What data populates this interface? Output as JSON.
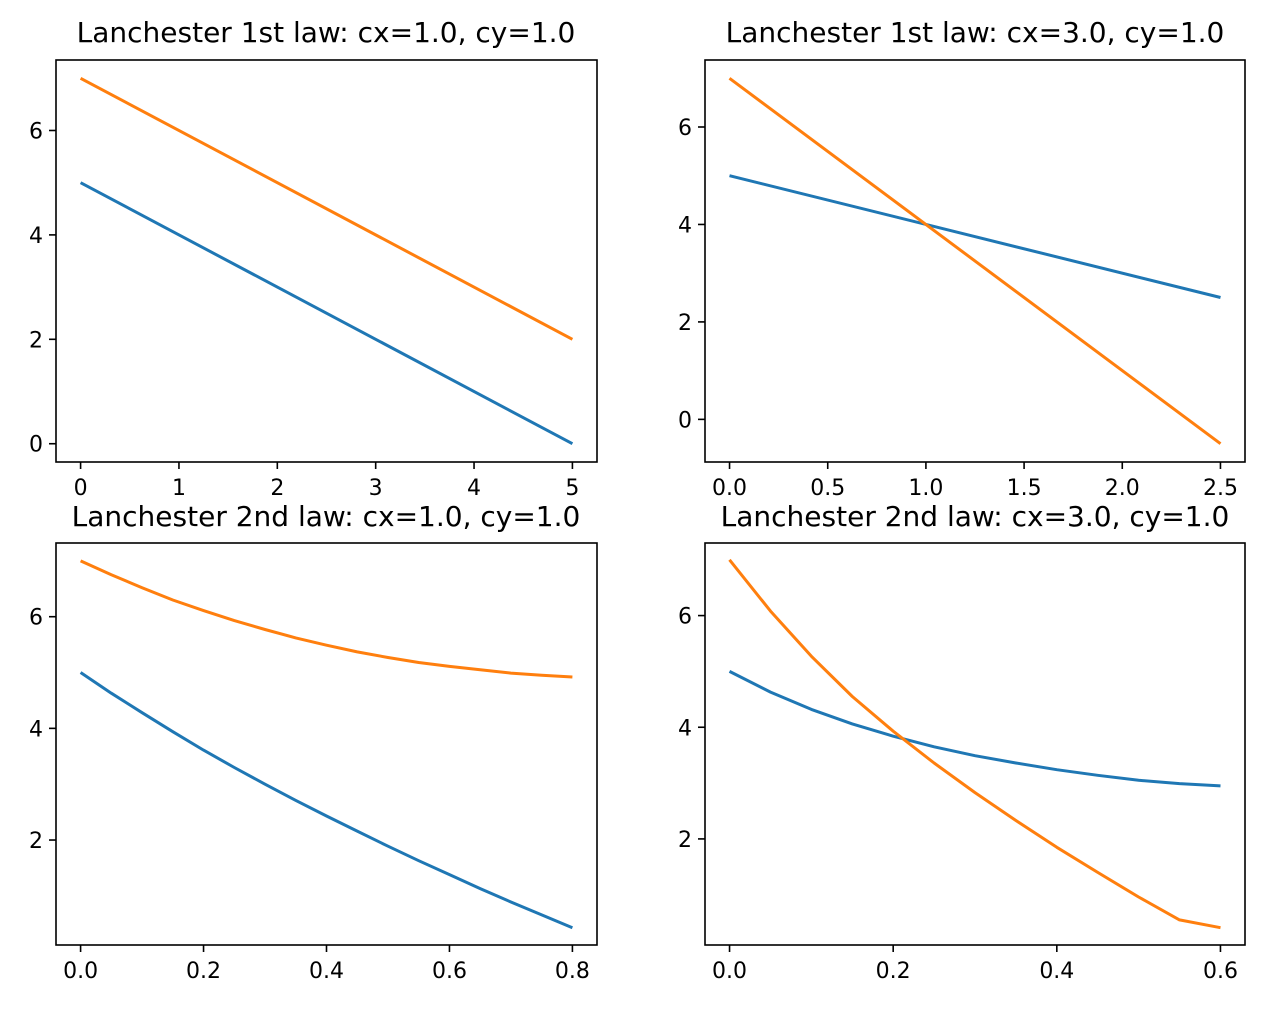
{
  "colors": {
    "series_x": "#1f77b4",
    "series_y": "#ff7f0e"
  },
  "chart_data": [
    {
      "type": "line",
      "title": "Lanchester 1st law: cx=1.0, cy=1.0",
      "xlim": [
        -0.25,
        5.25
      ],
      "ylim": [
        -0.35,
        7.35
      ],
      "xticks": [
        0,
        1,
        2,
        3,
        4,
        5
      ],
      "xtick_labels": [
        "0",
        "1",
        "2",
        "3",
        "4",
        "5"
      ],
      "yticks": [
        0,
        2,
        4,
        6
      ],
      "ytick_labels": [
        "0",
        "2",
        "4",
        "6"
      ],
      "series": [
        {
          "color": "#1f77b4",
          "x": [
            0,
            5
          ],
          "y": [
            5,
            0
          ]
        },
        {
          "color": "#ff7f0e",
          "x": [
            0,
            5
          ],
          "y": [
            7,
            2
          ]
        }
      ]
    },
    {
      "type": "line",
      "title": "Lanchester 1st law: cx=3.0, cy=1.0",
      "xlim": [
        -0.125,
        2.625
      ],
      "ylim": [
        -0.875,
        7.375
      ],
      "xticks": [
        0,
        0.5,
        1,
        1.5,
        2,
        2.5
      ],
      "xtick_labels": [
        "0.0",
        "0.5",
        "1.0",
        "1.5",
        "2.0",
        "2.5"
      ],
      "yticks": [
        0,
        2,
        4,
        6
      ],
      "ytick_labels": [
        "0",
        "2",
        "4",
        "6"
      ],
      "series": [
        {
          "color": "#1f77b4",
          "x": [
            0,
            2.5
          ],
          "y": [
            5,
            2.5
          ]
        },
        {
          "color": "#ff7f0e",
          "x": [
            0,
            2.5
          ],
          "y": [
            7,
            -0.5
          ]
        }
      ]
    },
    {
      "type": "line",
      "title": "Lanchester 2nd law: cx=1.0, cy=1.0",
      "xlim": [
        -0.04,
        0.84
      ],
      "ylim": [
        0.12,
        7.32
      ],
      "xticks": [
        0,
        0.2,
        0.4,
        0.6,
        0.8
      ],
      "xtick_labels": [
        "0.0",
        "0.2",
        "0.4",
        "0.6",
        "0.8"
      ],
      "yticks": [
        2,
        4,
        6
      ],
      "ytick_labels": [
        "2",
        "4",
        "6"
      ],
      "series": [
        {
          "color": "#1f77b4",
          "x": [
            0,
            0.05,
            0.1,
            0.15,
            0.2,
            0.25,
            0.3,
            0.35,
            0.4,
            0.45,
            0.5,
            0.55,
            0.6,
            0.65,
            0.7,
            0.75,
            0.8
          ],
          "y": [
            5.0,
            4.63,
            4.28,
            3.94,
            3.61,
            3.3,
            3.0,
            2.71,
            2.43,
            2.16,
            1.89,
            1.63,
            1.38,
            1.13,
            0.89,
            0.66,
            0.43
          ]
        },
        {
          "color": "#ff7f0e",
          "x": [
            0,
            0.05,
            0.1,
            0.15,
            0.2,
            0.25,
            0.3,
            0.35,
            0.4,
            0.45,
            0.5,
            0.55,
            0.6,
            0.65,
            0.7,
            0.75,
            0.8
          ],
          "y": [
            7.0,
            6.75,
            6.52,
            6.3,
            6.11,
            5.93,
            5.77,
            5.62,
            5.49,
            5.37,
            5.27,
            5.18,
            5.11,
            5.05,
            4.99,
            4.95,
            4.92
          ]
        }
      ]
    },
    {
      "type": "line",
      "title": "Lanchester 2nd law: cx=3.0, cy=1.0",
      "xlim": [
        -0.03,
        0.63
      ],
      "ylim": [
        0.1,
        7.3
      ],
      "xticks": [
        0,
        0.2,
        0.4,
        0.6
      ],
      "xtick_labels": [
        "0.0",
        "0.2",
        "0.4",
        "0.6"
      ],
      "yticks": [
        2,
        4,
        6
      ],
      "ytick_labels": [
        "2",
        "4",
        "6"
      ],
      "series": [
        {
          "color": "#1f77b4",
          "x": [
            0,
            0.05,
            0.1,
            0.15,
            0.2,
            0.25,
            0.3,
            0.35,
            0.4,
            0.45,
            0.5,
            0.55,
            0.6
          ],
          "y": [
            5.0,
            4.63,
            4.32,
            4.06,
            3.84,
            3.65,
            3.49,
            3.36,
            3.24,
            3.14,
            3.05,
            2.99,
            2.95
          ]
        },
        {
          "color": "#ff7f0e",
          "x": [
            0,
            0.05,
            0.1,
            0.15,
            0.2,
            0.25,
            0.3,
            0.35,
            0.4,
            0.45,
            0.5,
            0.55,
            0.6
          ],
          "y": [
            7.0,
            6.08,
            5.27,
            4.55,
            3.93,
            3.36,
            2.83,
            2.33,
            1.85,
            1.4,
            0.96,
            0.55,
            0.41
          ]
        }
      ]
    }
  ]
}
